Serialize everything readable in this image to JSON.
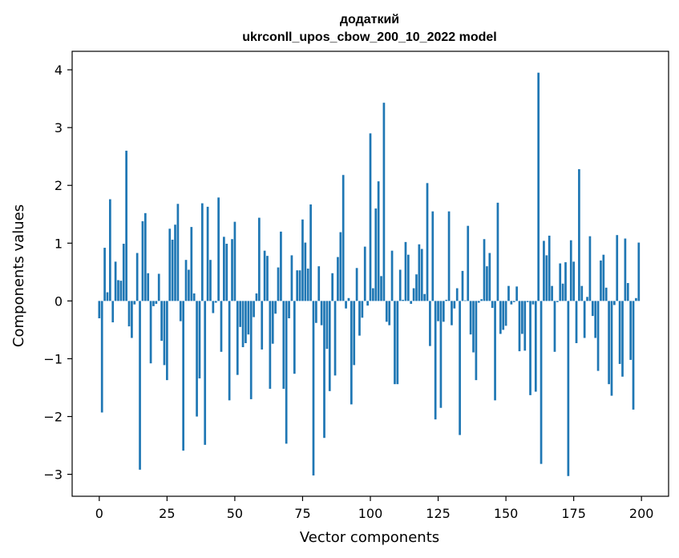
{
  "chart_data": {
    "type": "bar",
    "title": "додаткий",
    "subtitle": "ukrconll_upos_cbow_200_10_2022 model",
    "xlabel": "Vector components",
    "ylabel": "Components values",
    "xlim": [
      -10,
      210
    ],
    "ylim": [
      -3.38,
      4.32
    ],
    "xticks": [
      0,
      25,
      50,
      75,
      100,
      125,
      150,
      175,
      200
    ],
    "xtick_labels": [
      "0",
      "25",
      "50",
      "75",
      "100",
      "125",
      "150",
      "175",
      "200"
    ],
    "yticks": [
      -3,
      -2,
      -1,
      0,
      1,
      2,
      3,
      4
    ],
    "ytick_labels": [
      "−3",
      "−2",
      "−1",
      "0",
      "1",
      "2",
      "3",
      "4"
    ],
    "grid": false,
    "bar_color": "#1f77b4",
    "x": [
      0,
      1,
      2,
      3,
      4,
      5,
      6,
      7,
      8,
      9,
      10,
      11,
      12,
      13,
      14,
      15,
      16,
      17,
      18,
      19,
      20,
      21,
      22,
      23,
      24,
      25,
      26,
      27,
      28,
      29,
      30,
      31,
      32,
      33,
      34,
      35,
      36,
      37,
      38,
      39,
      40,
      41,
      42,
      43,
      44,
      45,
      46,
      47,
      48,
      49,
      50,
      51,
      52,
      53,
      54,
      55,
      56,
      57,
      58,
      59,
      60,
      61,
      62,
      63,
      64,
      65,
      66,
      67,
      68,
      69,
      70,
      71,
      72,
      73,
      74,
      75,
      76,
      77,
      78,
      79,
      80,
      81,
      82,
      83,
      84,
      85,
      86,
      87,
      88,
      89,
      90,
      91,
      92,
      93,
      94,
      95,
      96,
      97,
      98,
      99,
      100,
      101,
      102,
      103,
      104,
      105,
      106,
      107,
      108,
      109,
      110,
      111,
      112,
      113,
      114,
      115,
      116,
      117,
      118,
      119,
      120,
      121,
      122,
      123,
      124,
      125,
      126,
      127,
      128,
      129,
      130,
      131,
      132,
      133,
      134,
      135,
      136,
      137,
      138,
      139,
      140,
      141,
      142,
      143,
      144,
      145,
      146,
      147,
      148,
      149,
      150,
      151,
      152,
      153,
      154,
      155,
      156,
      157,
      158,
      159,
      160,
      161,
      162,
      163,
      164,
      165,
      166,
      167,
      168,
      169,
      170,
      171,
      172,
      173,
      174,
      175,
      176,
      177,
      178,
      179,
      180,
      181,
      182,
      183,
      184,
      185,
      186,
      187,
      188,
      189,
      190,
      191,
      192,
      193,
      194,
      195,
      196,
      197,
      198,
      199
    ],
    "values": [
      -0.3,
      -1.93,
      0.92,
      0.15,
      1.76,
      -0.37,
      0.68,
      0.36,
      0.35,
      0.99,
      2.6,
      -0.44,
      -0.64,
      -0.06,
      0.83,
      -2.92,
      1.38,
      1.52,
      0.48,
      -1.08,
      -0.09,
      -0.05,
      0.47,
      -0.69,
      -1.11,
      -1.37,
      1.25,
      1.06,
      1.32,
      1.68,
      -0.35,
      -2.59,
      0.71,
      0.54,
      1.28,
      0.13,
      -2.0,
      -1.34,
      1.69,
      -2.49,
      1.63,
      0.71,
      -0.21,
      -0.03,
      1.79,
      -0.88,
      1.11,
      0.99,
      -1.72,
      1.07,
      1.37,
      -1.28,
      -0.45,
      -0.8,
      -0.73,
      -0.58,
      -1.7,
      -0.28,
      0.13,
      1.44,
      -0.84,
      0.87,
      0.78,
      -1.52,
      -0.74,
      -0.22,
      0.58,
      1.2,
      -1.52,
      -2.47,
      -0.3,
      0.79,
      -1.26,
      0.53,
      0.53,
      1.41,
      1.01,
      0.56,
      1.67,
      -3.02,
      -0.38,
      0.6,
      -0.42,
      -2.37,
      -0.83,
      -1.56,
      0.48,
      -1.29,
      0.76,
      1.19,
      2.18,
      -0.13,
      0.05,
      -1.79,
      -1.11,
      0.57,
      -0.6,
      -0.29,
      0.94,
      -0.08,
      2.9,
      0.22,
      1.6,
      2.07,
      0.43,
      3.43,
      -0.36,
      -0.42,
      0.87,
      -1.44,
      -1.44,
      0.54,
      0.02,
      1.02,
      0.8,
      -0.05,
      0.22,
      0.46,
      0.98,
      0.9,
      0.12,
      2.04,
      -0.78,
      1.55,
      -2.05,
      -0.35,
      -1.85,
      -0.36,
      0.02,
      1.55,
      -0.42,
      -0.13,
      0.22,
      -2.32,
      0.52,
      0.01,
      1.3,
      -0.58,
      -0.89,
      -1.37,
      -0.03,
      0.03,
      1.07,
      0.6,
      0.83,
      -0.12,
      -1.72,
      1.7,
      -0.57,
      -0.5,
      -0.43,
      0.26,
      -0.06,
      -0.02,
      0.25,
      -0.87,
      -0.57,
      -0.86,
      -0.02,
      -1.63,
      -0.06,
      -1.57,
      3.95,
      -2.82,
      1.04,
      0.79,
      1.13,
      0.26,
      -0.88,
      -0.02,
      0.65,
      0.3,
      0.67,
      -3.03,
      1.05,
      0.68,
      -0.73,
      2.28,
      0.26,
      -0.64,
      0.07,
      1.12,
      -0.26,
      -0.64,
      -1.21,
      0.7,
      0.8,
      0.23,
      -1.44,
      -1.64,
      -0.07,
      1.14,
      -1.09,
      -1.31,
      1.08,
      0.31,
      -1.02,
      -1.88,
      0.05,
      1.01
    ]
  }
}
